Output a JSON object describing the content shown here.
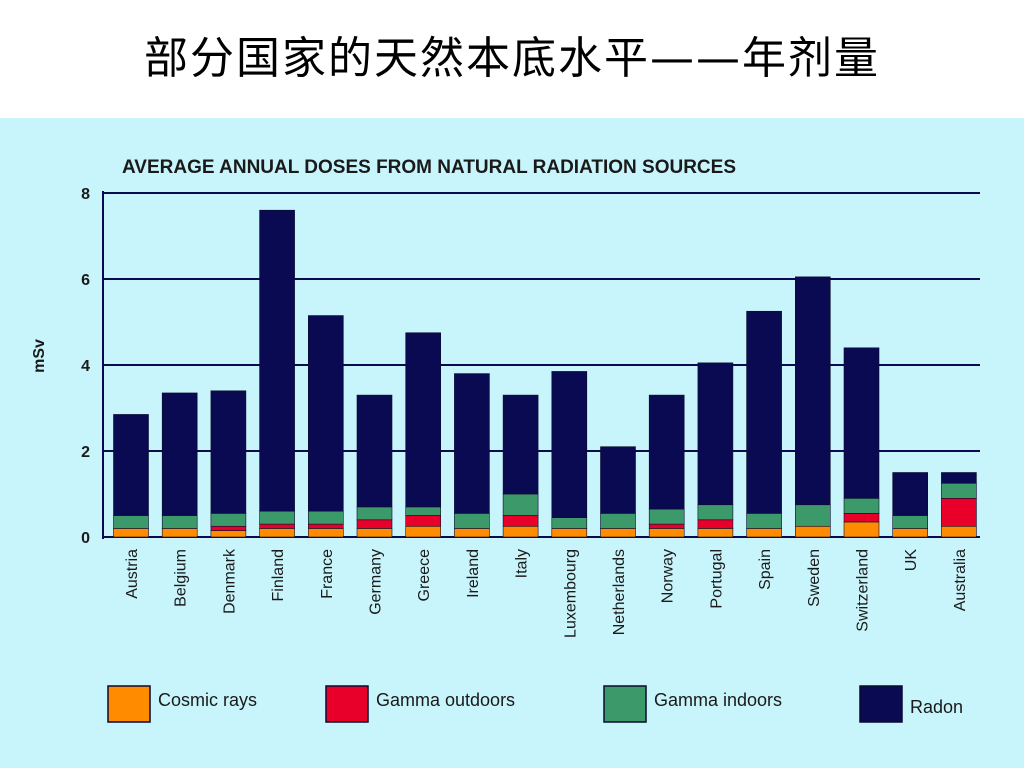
{
  "slide": {
    "title": "部分国家的天然本底水平——年剂量"
  },
  "colors": {
    "background": "#c8f4fb",
    "cosmic": "#ff8c00",
    "gamma_outdoors": "#e8002a",
    "gamma_indoors": "#3c9a6a",
    "radon": "#0a0a52",
    "axis": "#0a0a52"
  },
  "chart_data": {
    "type": "bar",
    "stacked": true,
    "title": "AVERAGE ANNUAL DOSES FROM NATURAL RADIATION SOURCES",
    "ylabel": "mSv",
    "xlabel": "",
    "ylim": [
      0,
      8
    ],
    "yticks": [
      "0",
      "2",
      "4",
      "6",
      "8"
    ],
    "grid": true,
    "legend_position": "bottom",
    "categories": [
      "Austria",
      "Belgium",
      "Denmark",
      "Finland",
      "France",
      "Germany",
      "Greece",
      "Ireland",
      "Italy",
      "Luxembourg",
      "Netherlands",
      "Norway",
      "Portugal",
      "Spain",
      "Sweden",
      "Switzerland",
      "UK",
      "Australia"
    ],
    "series": [
      {
        "name": "Cosmic rays",
        "color_key": "cosmic",
        "values": [
          0.2,
          0.2,
          0.15,
          0.2,
          0.2,
          0.2,
          0.25,
          0.2,
          0.25,
          0.2,
          0.2,
          0.2,
          0.2,
          0.2,
          0.25,
          0.35,
          0.2,
          0.25
        ]
      },
      {
        "name": "Gamma outdoors",
        "color_key": "gamma_outdoors",
        "values": [
          0,
          0,
          0.1,
          0.1,
          0.1,
          0.2,
          0.25,
          0,
          0.25,
          0,
          0,
          0.1,
          0.2,
          0,
          0,
          0.2,
          0,
          0.65
        ]
      },
      {
        "name": "Gamma indoors",
        "color_key": "gamma_indoors",
        "values": [
          0.3,
          0.3,
          0.3,
          0.3,
          0.3,
          0.3,
          0.2,
          0.35,
          0.5,
          0.25,
          0.35,
          0.35,
          0.35,
          0.35,
          0.5,
          0.35,
          0.3,
          0.35
        ]
      },
      {
        "name": "Radon",
        "color_key": "radon",
        "values": [
          2.35,
          2.85,
          2.85,
          7.0,
          4.55,
          2.6,
          4.05,
          3.25,
          2.3,
          3.4,
          1.55,
          2.65,
          3.3,
          4.7,
          5.3,
          3.5,
          1.0,
          0.25
        ]
      }
    ]
  }
}
